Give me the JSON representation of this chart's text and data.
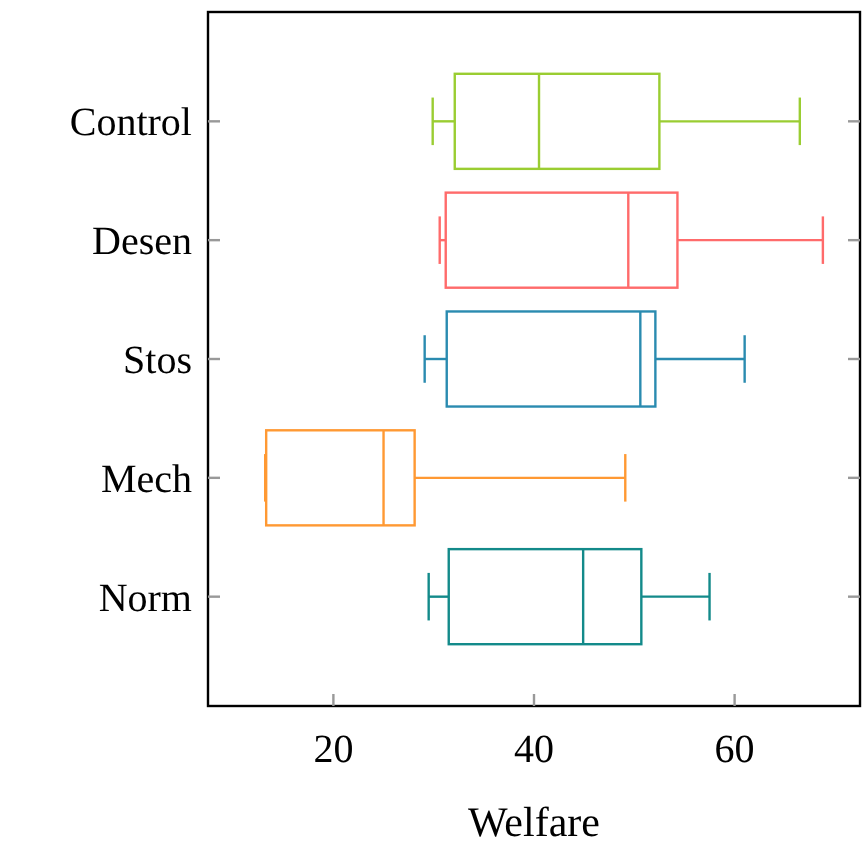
{
  "chart_data": {
    "type": "box",
    "orientation": "horizontal",
    "xlabel": "Welfare",
    "categories": [
      "Control",
      "Desen",
      "Stos",
      "Mech",
      "Norm"
    ],
    "colors": [
      "#9acd32",
      "#ff6b6b",
      "#2a8bb0",
      "#ff9933",
      "#138a8a"
    ],
    "boxes": [
      {
        "low": 29.9,
        "q1": 32.1,
        "median": 40.5,
        "q3": 52.5,
        "high": 66.5
      },
      {
        "low": 30.6,
        "q1": 31.2,
        "median": 49.4,
        "q3": 54.3,
        "high": 68.8
      },
      {
        "low": 29.1,
        "q1": 31.3,
        "median": 50.6,
        "q3": 52.1,
        "high": 61.0
      },
      {
        "low": 13.2,
        "q1": 13.3,
        "median": 25.0,
        "q3": 28.1,
        "high": 49.1
      },
      {
        "low": 29.5,
        "q1": 31.5,
        "median": 44.9,
        "q3": 50.7,
        "high": 57.5
      }
    ],
    "xlim": [
      7.5,
      72.5
    ],
    "xticks": [
      20,
      40,
      60
    ],
    "grid": false
  }
}
